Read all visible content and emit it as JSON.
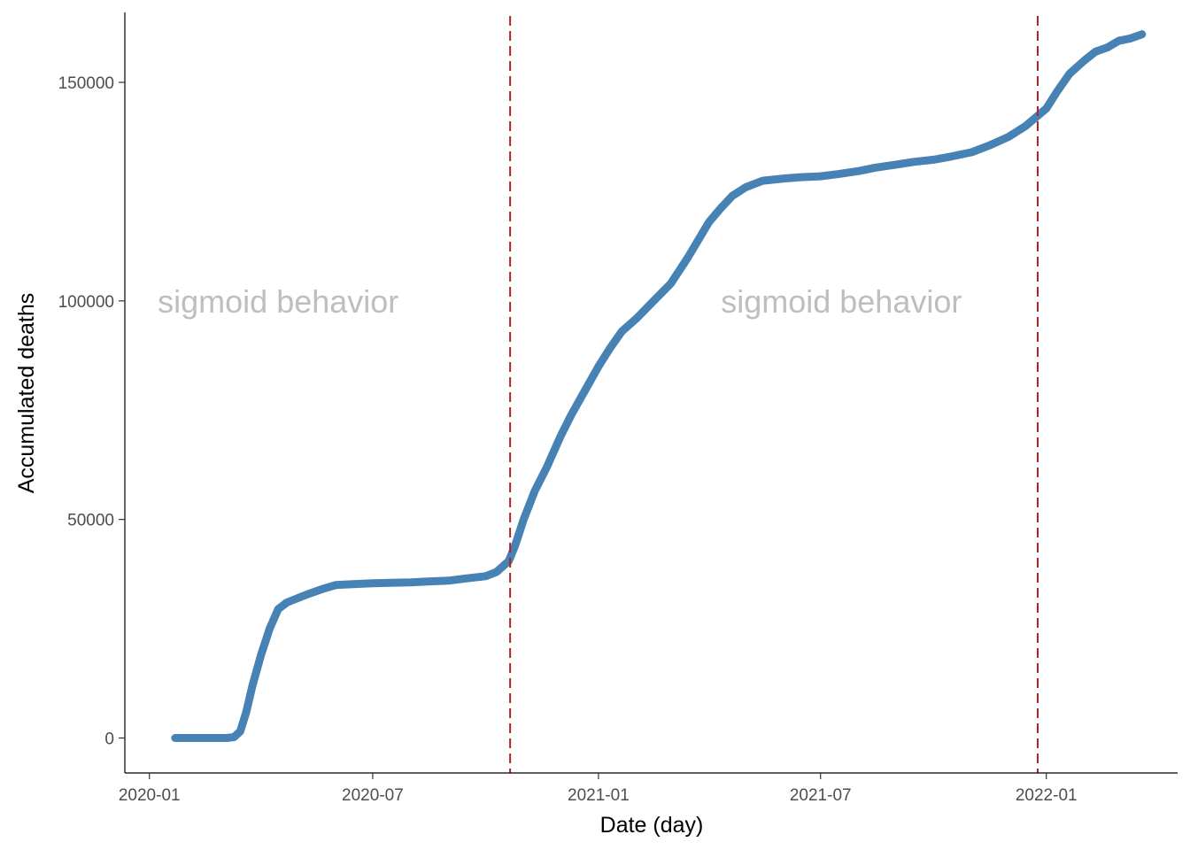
{
  "chart_data": {
    "type": "line",
    "title": "",
    "xlabel": "Date (day)",
    "ylabel": "Accumulated deaths",
    "x_ticks": [
      {
        "date": "2020-01-01",
        "label": "2020-01"
      },
      {
        "date": "2020-07-01",
        "label": "2020-07"
      },
      {
        "date": "2021-01-01",
        "label": "2021-01"
      },
      {
        "date": "2021-07-01",
        "label": "2021-07"
      },
      {
        "date": "2022-01-01",
        "label": "2022-01"
      }
    ],
    "y_ticks": [
      0,
      50000,
      100000,
      150000
    ],
    "xlim": [
      "2019-12-12",
      "2022-04-18"
    ],
    "ylim": [
      -8000,
      166000
    ],
    "grid": false,
    "series_color": "#4682B4",
    "series": [
      {
        "x": [
          "2020-01-22",
          "2020-02-15",
          "2020-03-04",
          "2020-03-10",
          "2020-03-15",
          "2020-03-20",
          "2020-03-25",
          "2020-04-01",
          "2020-04-08",
          "2020-04-15",
          "2020-04-22",
          "2020-05-01",
          "2020-05-10",
          "2020-05-20",
          "2020-06-01",
          "2020-06-15",
          "2020-07-01",
          "2020-07-15",
          "2020-08-01",
          "2020-08-15",
          "2020-09-01",
          "2020-09-15",
          "2020-10-01",
          "2020-10-10",
          "2020-10-20",
          "2020-10-25",
          "2020-11-01",
          "2020-11-10",
          "2020-11-20",
          "2020-12-01",
          "2020-12-10",
          "2020-12-20",
          "2021-01-01",
          "2021-01-10",
          "2021-01-20",
          "2021-02-01",
          "2021-02-15",
          "2021-03-01",
          "2021-03-15",
          "2021-04-01",
          "2021-04-10",
          "2021-04-20",
          "2021-05-01",
          "2021-05-15",
          "2021-06-01",
          "2021-06-15",
          "2021-07-01",
          "2021-07-15",
          "2021-08-01",
          "2021-08-15",
          "2021-09-01",
          "2021-09-15",
          "2021-10-01",
          "2021-10-15",
          "2021-11-01",
          "2021-11-15",
          "2021-12-01",
          "2021-12-15",
          "2022-01-01",
          "2022-01-10",
          "2022-01-20",
          "2022-02-01",
          "2022-02-10",
          "2022-02-20",
          "2022-03-01",
          "2022-03-10",
          "2022-03-20"
        ],
        "y": [
          0,
          0,
          0,
          200,
          1500,
          6000,
          12000,
          19000,
          25000,
          29500,
          31000,
          32000,
          33000,
          34000,
          35000,
          35200,
          35400,
          35500,
          35600,
          35800,
          36000,
          36500,
          37000,
          38000,
          40500,
          44000,
          50000,
          56500,
          62000,
          69000,
          74000,
          79000,
          85000,
          89000,
          93000,
          96000,
          100000,
          104000,
          110000,
          118000,
          121000,
          124000,
          126000,
          127500,
          128000,
          128300,
          128500,
          129000,
          129700,
          130500,
          131200,
          131800,
          132300,
          133000,
          134000,
          135500,
          137500,
          140000,
          144000,
          148000,
          152000,
          155000,
          157000,
          158000,
          159500,
          160000,
          161000
        ]
      }
    ],
    "reference_lines": [
      {
        "date": "2020-10-21",
        "color": "#B22222",
        "style": "dashed"
      },
      {
        "date": "2021-12-25",
        "color": "#B22222",
        "style": "dashed"
      }
    ],
    "annotations": [
      {
        "text": "sigmoid behavior",
        "date": "2020-04-15",
        "y": 100000,
        "color": "#BEBEBE"
      },
      {
        "text": "sigmoid behavior",
        "date": "2021-07-18",
        "y": 100000,
        "color": "#BEBEBE"
      }
    ]
  }
}
